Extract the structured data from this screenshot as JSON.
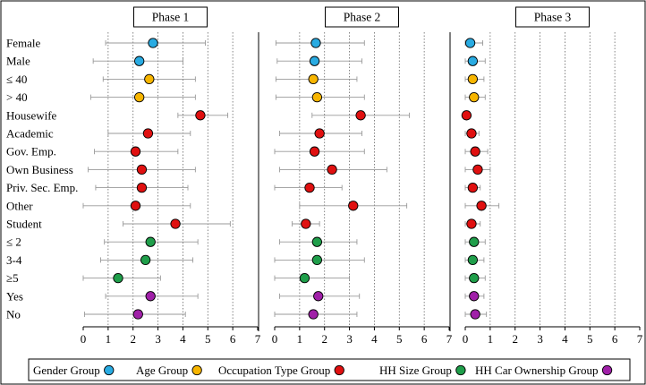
{
  "chart_data": {
    "type": "scatter",
    "subtype": "dot-plot with error bars",
    "x_axis": {
      "min": 0,
      "max": 7,
      "ticks": [
        0,
        1,
        2,
        3,
        4,
        5,
        6,
        7
      ],
      "gridlines": "dotted vertical at 1-6"
    },
    "categories": [
      "Female",
      "Male",
      "≤ 40",
      "> 40",
      "Housewife",
      "Academic",
      "Gov. Emp.",
      "Own Business",
      "Priv. Sec. Emp.",
      "Other",
      "Student",
      "≤ 2",
      "3-4",
      "≥5",
      "Yes",
      "No"
    ],
    "category_group": [
      "gender",
      "gender",
      "age",
      "age",
      "occupation",
      "occupation",
      "occupation",
      "occupation",
      "occupation",
      "occupation",
      "occupation",
      "hhsize",
      "hhsize",
      "hhsize",
      "car",
      "car"
    ],
    "groups": [
      {
        "key": "gender",
        "label": "Gender Group",
        "color": "#29abe2"
      },
      {
        "key": "age",
        "label": "Age Group",
        "color": "#f7b500"
      },
      {
        "key": "occupation",
        "label": "Occupation Type Group",
        "color": "#e01010"
      },
      {
        "key": "hhsize",
        "label": "HH Size Group",
        "color": "#1f9e4a"
      },
      {
        "key": "car",
        "label": "HH Car Ownership Group",
        "color": "#a020a8"
      }
    ],
    "panels": [
      {
        "title": "Phase 1",
        "means": [
          2.8,
          2.25,
          2.65,
          2.25,
          4.7,
          2.6,
          2.1,
          2.35,
          2.35,
          2.1,
          3.7,
          2.7,
          2.5,
          1.4,
          2.7,
          2.2
        ],
        "lower": [
          0.9,
          0.4,
          0.8,
          0.3,
          3.8,
          1.0,
          0.45,
          0.2,
          0.5,
          0.0,
          1.6,
          0.85,
          0.7,
          0.0,
          0.9,
          0.05
        ],
        "upper": [
          4.9,
          4.0,
          4.5,
          4.5,
          5.8,
          4.3,
          3.8,
          4.5,
          4.2,
          4.3,
          5.9,
          4.6,
          4.4,
          3.1,
          4.6,
          4.1
        ]
      },
      {
        "title": "Phase 2",
        "means": [
          1.65,
          1.6,
          1.55,
          1.7,
          3.45,
          1.8,
          1.6,
          2.3,
          1.4,
          3.15,
          1.25,
          1.7,
          1.7,
          1.2,
          1.75,
          1.55
        ],
        "lower": [
          0.05,
          0.1,
          0.05,
          0.05,
          1.5,
          0.2,
          0.0,
          0.2,
          0.0,
          1.0,
          0.7,
          0.2,
          0.0,
          0.0,
          0.2,
          0.0
        ],
        "upper": [
          3.6,
          3.5,
          3.3,
          3.6,
          5.4,
          3.5,
          3.6,
          4.5,
          2.7,
          5.3,
          1.8,
          3.3,
          3.6,
          3.0,
          3.4,
          3.3
        ]
      },
      {
        "title": "Phase 3",
        "means": [
          0.2,
          0.3,
          0.3,
          0.35,
          0.05,
          0.25,
          0.4,
          0.5,
          0.3,
          0.65,
          0.25,
          0.35,
          0.3,
          0.35,
          0.35,
          0.4
        ],
        "lower": [
          0.0,
          0.0,
          0.0,
          0.0,
          0.0,
          0.0,
          0.0,
          0.0,
          0.0,
          0.0,
          0.0,
          0.0,
          0.0,
          0.0,
          0.0,
          0.0
        ],
        "upper": [
          0.7,
          0.8,
          0.75,
          0.8,
          0.2,
          0.55,
          0.9,
          1.0,
          0.6,
          1.35,
          0.6,
          0.8,
          0.75,
          0.8,
          0.75,
          0.85
        ]
      }
    ]
  }
}
